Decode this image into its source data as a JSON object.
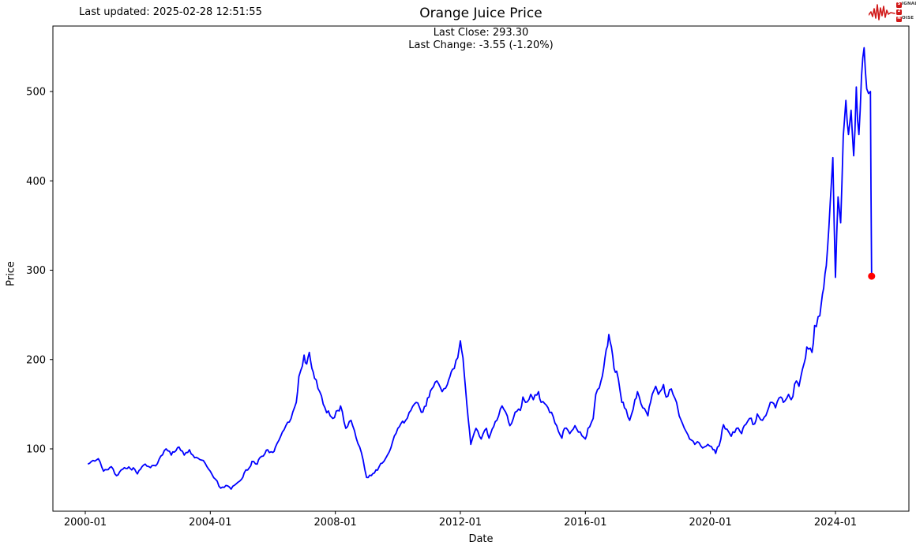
{
  "header": {
    "last_updated": "Last updated: 2025-02-28 12:51:55",
    "logo": {
      "accent_color": "#d11919",
      "lines": [
        {
          "badge": "S",
          "rest": "IGNAL"
        },
        {
          "badge": "2",
          "rest": ""
        },
        {
          "badge": "N",
          "rest": "OISE"
        }
      ]
    }
  },
  "chart": {
    "title": "Orange Juice Price",
    "annotation_line1": "Last Close: 293.30",
    "annotation_line2": "Last Change: -3.55 (-1.20%)",
    "xlabel": "Date",
    "ylabel": "Price"
  },
  "chart_data": {
    "type": "line",
    "title": "Orange Juice Price",
    "xlabel": "Date",
    "ylabel": "Price",
    "grid": false,
    "legend": false,
    "line_color": "#0000ff",
    "marker_color": "#ff0000",
    "x_ticks": [
      "2000-01",
      "2004-01",
      "2008-01",
      "2012-01",
      "2016-01",
      "2020-01",
      "2024-01"
    ],
    "y_ticks": [
      100,
      200,
      300,
      400,
      500
    ],
    "xlim": [
      "1998-12",
      "2026-04"
    ],
    "ylim": [
      30,
      573
    ],
    "last_close": 293.3,
    "last_change": -3.55,
    "last_change_pct": "-1.20%",
    "marker_point": {
      "date": "2025-02-28",
      "value": 293.3
    },
    "series": [
      {
        "name": "Orange Juice Price",
        "points": [
          [
            "2000-02",
            83
          ],
          [
            "2000-04",
            87
          ],
          [
            "2000-06",
            89
          ],
          [
            "2000-08",
            75
          ],
          [
            "2000-11",
            80
          ],
          [
            "2001-01",
            70
          ],
          [
            "2001-04",
            79
          ],
          [
            "2001-08",
            77
          ],
          [
            "2001-09",
            72
          ],
          [
            "2001-12",
            83
          ],
          [
            "2002-02",
            79
          ],
          [
            "2002-04",
            81
          ],
          [
            "2002-06",
            92
          ],
          [
            "2002-08",
            100
          ],
          [
            "2002-10",
            93
          ],
          [
            "2003-01",
            102
          ],
          [
            "2003-03",
            93
          ],
          [
            "2003-05",
            99
          ],
          [
            "2003-07",
            90
          ],
          [
            "2003-09",
            88
          ],
          [
            "2003-11",
            84
          ],
          [
            "2004-01",
            75
          ],
          [
            "2004-03",
            66
          ],
          [
            "2004-05",
            56
          ],
          [
            "2004-07",
            59
          ],
          [
            "2004-09",
            55
          ],
          [
            "2004-11",
            61
          ],
          [
            "2005-01",
            66
          ],
          [
            "2005-02",
            73
          ],
          [
            "2005-04",
            79
          ],
          [
            "2005-05",
            86
          ],
          [
            "2005-07",
            83
          ],
          [
            "2005-08",
            90
          ],
          [
            "2005-10",
            95
          ],
          [
            "2005-11",
            99
          ],
          [
            "2006-01",
            96
          ],
          [
            "2006-02",
            102
          ],
          [
            "2006-04",
            114
          ],
          [
            "2006-06",
            126
          ],
          [
            "2006-08",
            134
          ],
          [
            "2006-10",
            152
          ],
          [
            "2006-11",
            181
          ],
          [
            "2007-01",
            205
          ],
          [
            "2007-02",
            195
          ],
          [
            "2007-03",
            208
          ],
          [
            "2007-04",
            190
          ],
          [
            "2007-05",
            179
          ],
          [
            "2007-07",
            164
          ],
          [
            "2007-09",
            146
          ],
          [
            "2007-11",
            137
          ],
          [
            "2007-12",
            134
          ],
          [
            "2008-02",
            143
          ],
          [
            "2008-03",
            148
          ],
          [
            "2008-05",
            123
          ],
          [
            "2008-07",
            132
          ],
          [
            "2008-09",
            112
          ],
          [
            "2008-11",
            96
          ],
          [
            "2009-01",
            68
          ],
          [
            "2009-04",
            73
          ],
          [
            "2009-07",
            84
          ],
          [
            "2009-09",
            93
          ],
          [
            "2009-11",
            108
          ],
          [
            "2010-01",
            123
          ],
          [
            "2010-04",
            132
          ],
          [
            "2010-06",
            143
          ],
          [
            "2010-08",
            152
          ],
          [
            "2010-10",
            141
          ],
          [
            "2011-01",
            158
          ],
          [
            "2011-02",
            167
          ],
          [
            "2011-04",
            176
          ],
          [
            "2011-06",
            164
          ],
          [
            "2011-08",
            172
          ],
          [
            "2011-09",
            181
          ],
          [
            "2011-10",
            189
          ],
          [
            "2011-12",
            202
          ],
          [
            "2012-01",
            221
          ],
          [
            "2012-02",
            202
          ],
          [
            "2012-03",
            167
          ],
          [
            "2012-04",
            134
          ],
          [
            "2012-05",
            105
          ],
          [
            "2012-07",
            123
          ],
          [
            "2012-09",
            111
          ],
          [
            "2012-11",
            123
          ],
          [
            "2012-12",
            112
          ],
          [
            "2013-03",
            132
          ],
          [
            "2013-05",
            148
          ],
          [
            "2013-07",
            137
          ],
          [
            "2013-08",
            126
          ],
          [
            "2013-10",
            141
          ],
          [
            "2013-12",
            143
          ],
          [
            "2014-01",
            158
          ],
          [
            "2014-02",
            152
          ],
          [
            "2014-04",
            161
          ],
          [
            "2014-05",
            155
          ],
          [
            "2014-07",
            164
          ],
          [
            "2014-08",
            152
          ],
          [
            "2014-10",
            149
          ],
          [
            "2014-12",
            141
          ],
          [
            "2015-02",
            126
          ],
          [
            "2015-04",
            112
          ],
          [
            "2015-05",
            123
          ],
          [
            "2015-07",
            117
          ],
          [
            "2015-09",
            126
          ],
          [
            "2015-11",
            119
          ],
          [
            "2016-01",
            111
          ],
          [
            "2016-02",
            123
          ],
          [
            "2016-04",
            134
          ],
          [
            "2016-05",
            161
          ],
          [
            "2016-07",
            176
          ],
          [
            "2016-08",
            190
          ],
          [
            "2016-09",
            211
          ],
          [
            "2016-10",
            228
          ],
          [
            "2016-11",
            214
          ],
          [
            "2016-12",
            190
          ],
          [
            "2017-01",
            187
          ],
          [
            "2017-03",
            152
          ],
          [
            "2017-04",
            146
          ],
          [
            "2017-06",
            132
          ],
          [
            "2017-08",
            155
          ],
          [
            "2017-09",
            164
          ],
          [
            "2017-11",
            146
          ],
          [
            "2018-01",
            137
          ],
          [
            "2018-02",
            152
          ],
          [
            "2018-04",
            170
          ],
          [
            "2018-05",
            161
          ],
          [
            "2018-07",
            172
          ],
          [
            "2018-08",
            158
          ],
          [
            "2018-10",
            167
          ],
          [
            "2018-12",
            152
          ],
          [
            "2019-01",
            137
          ],
          [
            "2019-03",
            123
          ],
          [
            "2019-05",
            111
          ],
          [
            "2019-07",
            105
          ],
          [
            "2019-08",
            108
          ],
          [
            "2019-10",
            101
          ],
          [
            "2019-12",
            105
          ],
          [
            "2020-02",
            99
          ],
          [
            "2020-03",
            95
          ],
          [
            "2020-05",
            111
          ],
          [
            "2020-06",
            127
          ],
          [
            "2020-08",
            119
          ],
          [
            "2020-09",
            114
          ],
          [
            "2020-11",
            123
          ],
          [
            "2021-01",
            117
          ],
          [
            "2021-02",
            126
          ],
          [
            "2021-04",
            134
          ],
          [
            "2021-06",
            128
          ],
          [
            "2021-07",
            139
          ],
          [
            "2021-09",
            132
          ],
          [
            "2021-11",
            143
          ],
          [
            "2021-12",
            152
          ],
          [
            "2022-02",
            146
          ],
          [
            "2022-04",
            158
          ],
          [
            "2022-05",
            152
          ],
          [
            "2022-07",
            161
          ],
          [
            "2022-08",
            155
          ],
          [
            "2022-10",
            176
          ],
          [
            "2022-11",
            170
          ],
          [
            "2023-01",
            196
          ],
          [
            "2023-02",
            214
          ],
          [
            "2023-04",
            208
          ],
          [
            "2023-05",
            238
          ],
          [
            "2023-07",
            249
          ],
          [
            "2023-08",
            273
          ],
          [
            "2023-09",
            296
          ],
          [
            "2023-10",
            326
          ],
          [
            "2023-11",
            376
          ],
          [
            "2023-12",
            426
          ],
          [
            "2024-01",
            292
          ],
          [
            "2024-02",
            382
          ],
          [
            "2024-03",
            353
          ],
          [
            "2024-04",
            450
          ],
          [
            "2024-05",
            490
          ],
          [
            "2024-06",
            452
          ],
          [
            "2024-07",
            479
          ],
          [
            "2024-08",
            428
          ],
          [
            "2024-09",
            505
          ],
          [
            "2024-10",
            452
          ],
          [
            "2024-11",
            517
          ],
          [
            "2024-12",
            549
          ],
          [
            "2025-01",
            503
          ],
          [
            "2025-02-14",
            500
          ],
          [
            "2025-02-28",
            293.3
          ]
        ]
      }
    ]
  }
}
